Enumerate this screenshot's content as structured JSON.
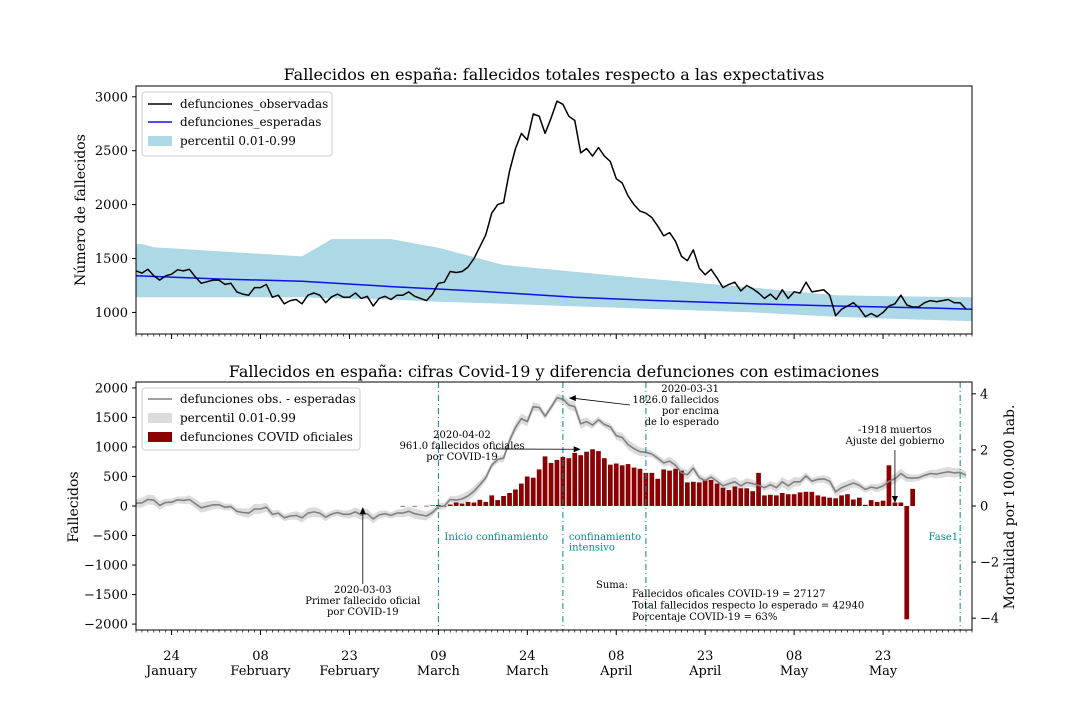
{
  "chart_data": [
    {
      "type": "line",
      "title": "Fallecidos en españa: fallecidos totales respecto a las expectativas",
      "ylabel": "Número de fallecidos",
      "ylim": [
        800,
        3100
      ],
      "yticks": [
        1000,
        1500,
        2000,
        2500,
        3000
      ],
      "x_start": "2020-01-18",
      "x_end": "2020-06-07",
      "legend": {
        "position": "top-left",
        "entries": [
          "defunciones_observadas",
          "defunciones_esperadas",
          "percentil 0.01-0.99"
        ]
      },
      "colors": {
        "observed": "#000000",
        "expected": "#1010e8",
        "band": "#add8e6"
      },
      "series": [
        {
          "name": "defunciones_observadas",
          "values": [
            1385,
            1365,
            1400,
            1340,
            1300,
            1340,
            1355,
            1395,
            1385,
            1400,
            1330,
            1270,
            1285,
            1300,
            1300,
            1260,
            1270,
            1190,
            1170,
            1160,
            1230,
            1230,
            1260,
            1140,
            1160,
            1080,
            1110,
            1120,
            1080,
            1160,
            1180,
            1160,
            1090,
            1145,
            1170,
            1140,
            1140,
            1180,
            1130,
            1150,
            1060,
            1130,
            1150,
            1120,
            1160,
            1160,
            1190,
            1150,
            1130,
            1110,
            1170,
            1270,
            1280,
            1380,
            1370,
            1380,
            1420,
            1500,
            1610,
            1720,
            1920,
            2000,
            2020,
            2310,
            2520,
            2660,
            2600,
            2840,
            2820,
            2660,
            2800,
            2960,
            2930,
            2820,
            2780,
            2480,
            2520,
            2450,
            2530,
            2450,
            2400,
            2240,
            2200,
            2080,
            2000,
            1940,
            1920,
            1880,
            1800,
            1710,
            1740,
            1660,
            1520,
            1480,
            1580,
            1410,
            1350,
            1400,
            1320,
            1230,
            1260,
            1280,
            1200,
            1250,
            1220,
            1180,
            1130,
            1170,
            1120,
            1210,
            1130,
            1190,
            1180,
            1280,
            1190,
            1200,
            1210,
            1160,
            970,
            1030,
            1060,
            1090,
            1040,
            960,
            990,
            960,
            1000,
            1060,
            1080,
            1160,
            1070,
            1050,
            1050,
            1090,
            1110,
            1100,
            1110,
            1120,
            1090,
            1090,
            1030
          ],
          "scale": {
            "start": "2020-01-18",
            "step": "1 day"
          }
        },
        {
          "name": "defunciones_esperadas",
          "x": [
            "2020-01-18",
            "2020-02-01",
            "2020-02-15",
            "2020-03-01",
            "2020-03-15",
            "2020-04-01",
            "2020-04-15",
            "2020-05-01",
            "2020-05-15",
            "2020-06-01",
            "2020-06-07"
          ],
          "values": [
            1340,
            1310,
            1290,
            1240,
            1200,
            1140,
            1110,
            1080,
            1060,
            1040,
            1030
          ]
        },
        {
          "name": "percentil 0.01-0.99",
          "x": [
            "2020-01-18",
            "2020-01-19",
            "2020-01-21",
            "2020-02-15",
            "2020-02-20",
            "2020-03-01",
            "2020-03-09",
            "2020-03-20",
            "2020-04-10",
            "2020-05-01",
            "2020-05-15",
            "2020-05-25",
            "2020-06-07"
          ],
          "lower": [
            1140,
            1140,
            1140,
            1140,
            1130,
            1120,
            1100,
            1080,
            1040,
            1000,
            960,
            940,
            920
          ],
          "upper": [
            1635,
            1635,
            1605,
            1520,
            1680,
            1680,
            1600,
            1440,
            1330,
            1230,
            1160,
            1150,
            1140
          ]
        }
      ]
    },
    {
      "type": "bar",
      "title": "Fallecidos en españa: cifras Covid-19 y diferencia defunciones con estimaciones",
      "ylabel": "Fallecidos",
      "ylabel_right": "Mortalidad por 100.000 hab.",
      "ylim": [
        -2100,
        2100
      ],
      "yticks": [
        -2000,
        -1500,
        -1000,
        -500,
        0,
        500,
        1000,
        1500,
        2000
      ],
      "yticks_right": [
        -4,
        -2,
        0,
        2,
        4
      ],
      "legend": {
        "position": "top-left",
        "entries": [
          "defunciones obs. - esperadas",
          "percentil 0.01-0.99",
          "defunciones COVID oficiales"
        ]
      },
      "colors": {
        "line": "#808080",
        "band": "#dcdcdc",
        "bars": "#8b0000",
        "vlines": "#008b8b"
      },
      "covid_bars": {
        "start": "2020-03-03",
        "step": "1 day",
        "values": [
          1,
          0,
          1,
          0,
          3,
          10,
          17,
          -8,
          25,
          60,
          40,
          70,
          60,
          105,
          70,
          180,
          100,
          170,
          220,
          280,
          380,
          500,
          480,
          620,
          840,
          730,
          780,
          830,
          810,
          900,
          860,
          920,
          961,
          930,
          810,
          700,
          720,
          690,
          710,
          650,
          630,
          560,
          560,
          460,
          620,
          600,
          630,
          600,
          400,
          410,
          400,
          430,
          440,
          380,
          310,
          270,
          330,
          300,
          300,
          250,
          560,
          180,
          190,
          180,
          220,
          200,
          200,
          230,
          240,
          240,
          180,
          160,
          140,
          130,
          180,
          200,
          110,
          140,
          20,
          100,
          70,
          90,
          690,
          60,
          60,
          -1918,
          290,
          0,
          0,
          0,
          0
        ],
        "unit": "deaths per day"
      },
      "difference_line": {
        "x_start": "2020-01-18",
        "step": "1 day",
        "values": [
          45,
          55,
          110,
          100,
          10,
          60,
          65,
          105,
          95,
          110,
          40,
          -30,
          -5,
          20,
          20,
          -20,
          -10,
          -90,
          -110,
          -120,
          -50,
          -50,
          -20,
          -140,
          -120,
          -200,
          -170,
          -160,
          -200,
          -120,
          -100,
          -120,
          -190,
          -135,
          -110,
          -140,
          -140,
          -100,
          -150,
          -130,
          -220,
          -150,
          -130,
          -160,
          -120,
          -120,
          -90,
          -130,
          -150,
          -170,
          -110,
          -10,
          0,
          110,
          100,
          120,
          170,
          250,
          360,
          480,
          690,
          790,
          810,
          1110,
          1330,
          1480,
          1430,
          1680,
          1670,
          1520,
          1670,
          1832,
          1810,
          1710,
          1680,
          1390,
          1430,
          1370,
          1460,
          1380,
          1340,
          1190,
          1160,
          1040,
          970,
          920,
          910,
          880,
          810,
          730,
          760,
          690,
          560,
          530,
          640,
          480,
          430,
          490,
          420,
          340,
          380,
          410,
          340,
          400,
          380,
          350,
          310,
          360,
          310,
          410,
          340,
          410,
          410,
          510,
          420,
          450,
          460,
          420,
          240,
          310,
          350,
          390,
          350,
          280,
          320,
          300,
          340,
          420,
          460,
          550,
          480,
          470,
          480,
          520,
          550,
          540,
          560,
          580,
          560,
          570,
          520
        ]
      },
      "annotations": [
        {
          "date": "2020-03-03",
          "text": "2020-03-03\nPrimer fallecido oficial\npor COVID-19",
          "value": 0
        },
        {
          "date": "2020-04-02",
          "text": "2020-04-02\n961.0 fallecidos oficiales\npor COVID-19",
          "value": 961
        },
        {
          "date": "2020-03-31",
          "text": "2020-03-31\n1826.0 fallecidos\npor encima\nde lo esperado",
          "value": 1826
        },
        {
          "date": "2020-05-25",
          "text": "-1918 muertos\nAjuste del gobierno",
          "value": -1918
        }
      ],
      "vlines": [
        {
          "date": "2020-03-09",
          "label": "Inicio confinamiento"
        },
        {
          "date": "2020-03-30",
          "label": "confinamiento\nintensivo"
        },
        {
          "date": "2020-04-13",
          "label": ""
        },
        {
          "date": "2020-06-05",
          "label": "Fase1"
        }
      ],
      "summary": {
        "header": "Suma:",
        "lines": [
          "Fallecidos oficales COVID-19 = 27127",
          "Total fallecidos respecto lo esperado = 42940",
          "Porcentaje COVID-19 = 63%"
        ]
      }
    }
  ],
  "xaxis": {
    "ticks": [
      {
        "day": "24",
        "month": "January"
      },
      {
        "day": "08",
        "month": "February"
      },
      {
        "day": "23",
        "month": "February"
      },
      {
        "day": "09",
        "month": "March"
      },
      {
        "day": "24",
        "month": "March"
      },
      {
        "day": "08",
        "month": "April"
      },
      {
        "day": "23",
        "month": "April"
      },
      {
        "day": "08",
        "month": "May"
      },
      {
        "day": "23",
        "month": "May"
      }
    ]
  }
}
